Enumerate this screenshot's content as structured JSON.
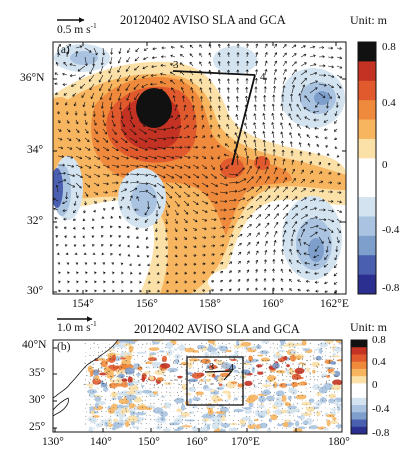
{
  "panel_a": {
    "label": "(a)",
    "title": "20120402 AVISO SLA and GCA",
    "reference_vector": {
      "label": "0.5 m s",
      "exponent": "-1"
    },
    "unit_label": "Unit: m",
    "lat_ticks": [
      {
        "label": "30°"
      },
      {
        "label": "32°"
      },
      {
        "label": "34°"
      },
      {
        "label": "36°N"
      }
    ],
    "lon_ticks": [
      {
        "label": "154°"
      },
      {
        "label": "156°"
      },
      {
        "label": "158°"
      },
      {
        "label": "160°"
      },
      {
        "label": "162°E"
      }
    ],
    "colorbar_ticks": [
      {
        "label": "0.8"
      },
      {
        "label": "0.4"
      },
      {
        "label": "0"
      },
      {
        "label": "-0.4"
      },
      {
        "label": "-0.8"
      }
    ],
    "station_labels": [
      "3",
      "4"
    ]
  },
  "panel_b": {
    "label": "(b)",
    "title": "20120402 AVISO SLA and GCA",
    "reference_vector": {
      "label": "1.0 m s",
      "exponent": "-1"
    },
    "unit_label": "Unit: m",
    "lat_ticks": [
      {
        "label": "25°"
      },
      {
        "label": "30°"
      },
      {
        "label": "35°"
      },
      {
        "label": "40°N"
      }
    ],
    "lon_ticks": [
      {
        "label": "130°"
      },
      {
        "label": "140°"
      },
      {
        "label": "150°"
      },
      {
        "label": "160°"
      },
      {
        "label": "170°E"
      },
      {
        "label": "180°"
      }
    ],
    "colorbar_ticks": [
      {
        "label": "0.8"
      },
      {
        "label": "0.4"
      },
      {
        "label": "0"
      },
      {
        "label": "-0.4"
      },
      {
        "label": "-0.8"
      }
    ],
    "station_labels": [
      "3",
      "4"
    ]
  },
  "colors": {
    "scale": [
      "#2b2f8f",
      "#4a5fb0",
      "#7e9fcc",
      "#a9c3e0",
      "#d3e3f0",
      "#ffffff",
      "#ffffff",
      "#fbe0a8",
      "#f7b560",
      "#ef8a3c",
      "#e05a2e",
      "#c43223",
      "#111111"
    ]
  }
}
